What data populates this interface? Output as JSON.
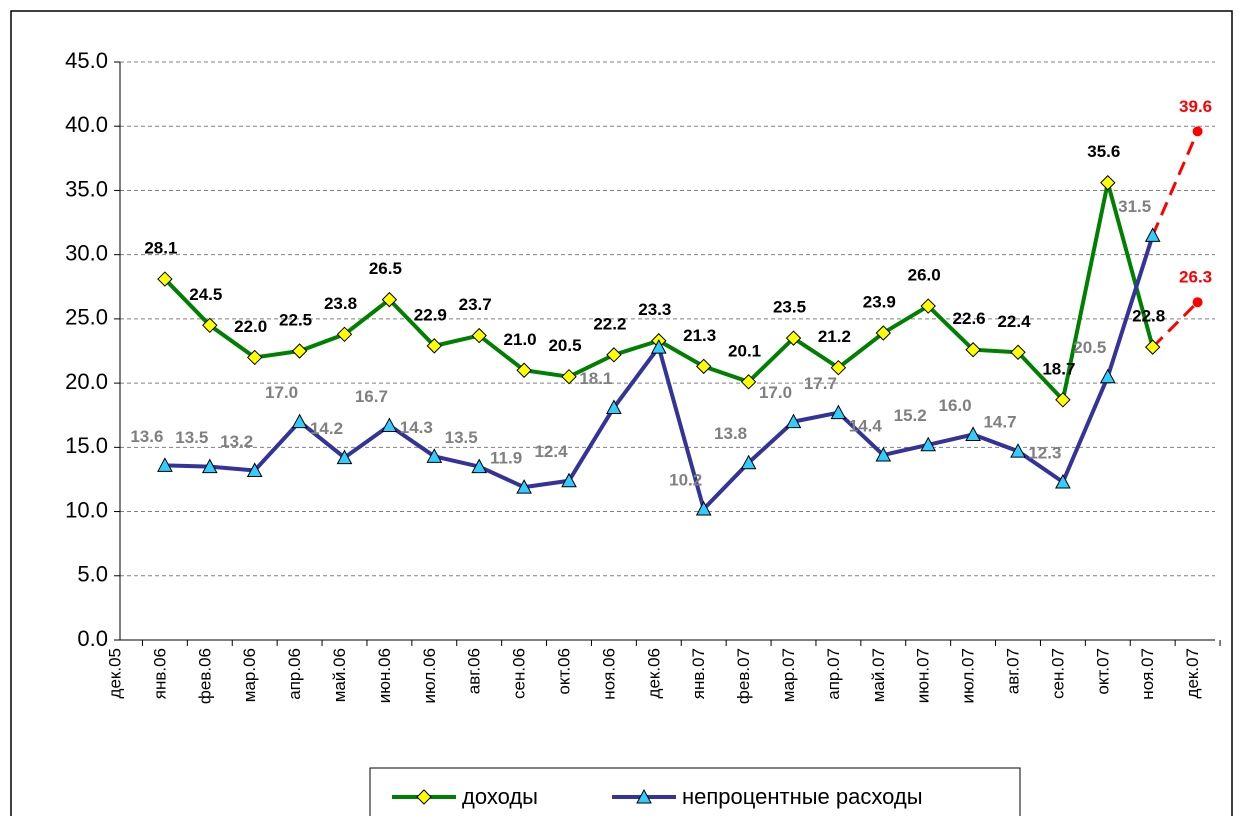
{
  "chart_data": {
    "type": "line",
    "categories": [
      "дек.05",
      "янв.06",
      "фев.06",
      "мар.06",
      "апр.06",
      "май.06",
      "июн.06",
      "июл.06",
      "авг.06",
      "сен.06",
      "окт.06",
      "ноя.06",
      "дек.06",
      "янв.07",
      "фев.07",
      "мар.07",
      "апр.07",
      "май.07",
      "июн.07",
      "июл.07",
      "авг.07",
      "сен.07",
      "окт.07",
      "ноя.07",
      "дек.07"
    ],
    "series": [
      {
        "name": "доходы",
        "color": "#008000",
        "marker_color": "#ffff00",
        "label_color": "#000000",
        "values": [
          null,
          28.1,
          24.5,
          22.0,
          22.5,
          23.8,
          26.5,
          22.9,
          23.7,
          21.0,
          20.5,
          22.2,
          23.3,
          21.3,
          20.1,
          23.5,
          21.2,
          23.9,
          26.0,
          22.6,
          22.4,
          18.7,
          35.6,
          22.8,
          null
        ],
        "value_labels": [
          null,
          "28.1",
          "24.5",
          "22.0",
          "22.5",
          "23.8",
          "26.5",
          "22.9",
          "23.7",
          "21.0",
          "20.5",
          "22.2",
          "23.3",
          "21.3",
          "20.1",
          "23.5",
          "21.2",
          "23.9",
          "26.0",
          "22.6",
          "22.4",
          "18.7",
          "35.6",
          "22.8",
          null
        ],
        "forecast": 26.3,
        "forecast_label": "26.3"
      },
      {
        "name": "непроцентные расходы",
        "color": "#333399",
        "marker_color": "#33ccff",
        "label_color": "#808080",
        "values": [
          null,
          13.6,
          13.5,
          13.2,
          17.0,
          14.2,
          16.7,
          14.3,
          13.5,
          11.9,
          12.4,
          18.1,
          22.8,
          10.2,
          13.8,
          17.0,
          17.7,
          14.4,
          15.2,
          16.0,
          14.7,
          12.3,
          20.5,
          31.5,
          null
        ],
        "value_labels": [
          null,
          "13.6",
          "13.5",
          "13.2",
          "17.0",
          "14.2",
          "16.7",
          "14.3",
          "13.5",
          "11.9",
          "12.4",
          "18.1",
          null,
          "10.2",
          "13.8",
          "17.0",
          "17.7",
          "14.4",
          "15.2",
          "16.0",
          "14.7",
          "12.3",
          "20.5",
          "31.5",
          null
        ],
        "forecast": 39.6,
        "forecast_label": "39.6"
      }
    ],
    "forecast_color": "#ff0000",
    "ylim": [
      0,
      45
    ],
    "yticks": [
      {
        "value": 0,
        "label": "0.0"
      },
      {
        "value": 5,
        "label": "5.0"
      },
      {
        "value": 10,
        "label": "10.0"
      },
      {
        "value": 15,
        "label": "15.0"
      },
      {
        "value": 20,
        "label": "20.0"
      },
      {
        "value": 25,
        "label": "25.0"
      },
      {
        "value": 30,
        "label": "30.0"
      },
      {
        "value": 35,
        "label": "35.0"
      },
      {
        "value": 40,
        "label": "40.0"
      },
      {
        "value": 45,
        "label": "45.0"
      }
    ],
    "grid": true,
    "legend": "bottom"
  }
}
